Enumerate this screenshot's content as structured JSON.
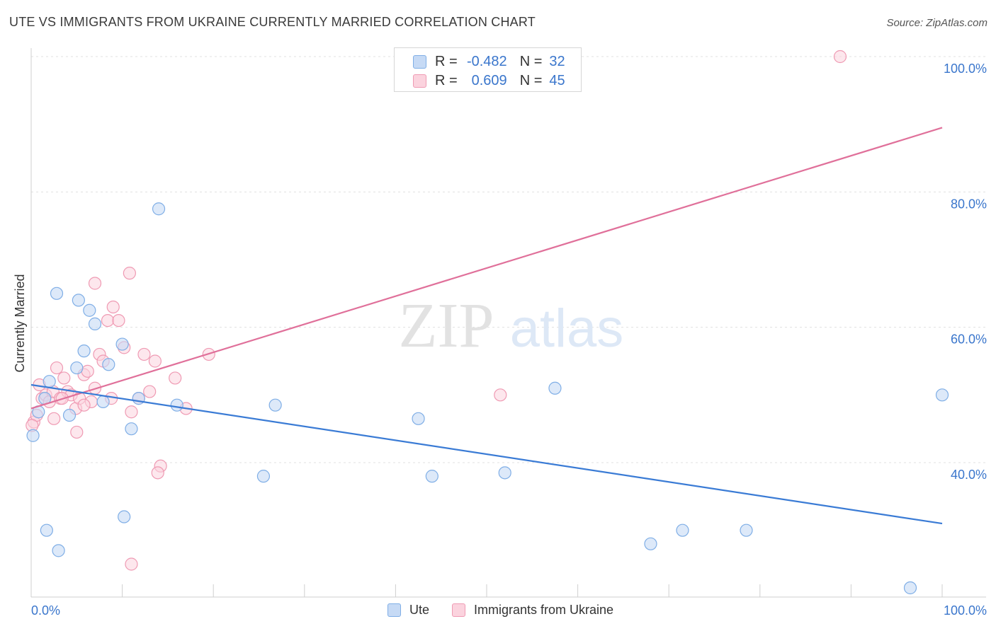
{
  "header": {
    "title": "UTE VS IMMIGRANTS FROM UKRAINE CURRENTLY MARRIED CORRELATION CHART",
    "source": "Source: ZipAtlas.com"
  },
  "watermark": {
    "zip": "ZIP",
    "atlas": "atlas"
  },
  "legend": {
    "rows": [
      {
        "r_label": "R =",
        "r_value": "-0.482",
        "n_label": "N =",
        "n_value": "32"
      },
      {
        "r_label": "R =",
        "r_value": "0.609",
        "n_label": "N =",
        "n_value": "45"
      }
    ]
  },
  "colors": {
    "ute_fill": "#c6daf5",
    "ute_stroke": "#7faee6",
    "ute_line": "#3a7bd5",
    "ukr_fill": "#fbd3de",
    "ukr_stroke": "#ef9ab3",
    "ukr_line": "#e0709a",
    "tick_text": "#3a76cc",
    "grid": "#e0e0e0"
  },
  "chart_data": {
    "type": "scatter",
    "title": "UTE VS IMMIGRANTS FROM UKRAINE CURRENTLY MARRIED CORRELATION CHART",
    "xlabel": "",
    "ylabel": "Currently Married",
    "xlim": [
      0,
      100
    ],
    "ylim": [
      20,
      102
    ],
    "x_tick_labels": [
      "0.0%",
      "100.0%"
    ],
    "y_ticks": [
      40,
      60,
      80,
      100
    ],
    "y_tick_labels": [
      "40.0%",
      "60.0%",
      "80.0%",
      "100.0%"
    ],
    "series": [
      {
        "name": "Ute",
        "r": -0.482,
        "n": 32,
        "trend": {
          "x": [
            0,
            100
          ],
          "y": [
            51.5,
            31.0
          ]
        },
        "points": [
          [
            0.2,
            44.0
          ],
          [
            0.8,
            47.5
          ],
          [
            2.8,
            65.0
          ],
          [
            4.2,
            47.0
          ],
          [
            2.0,
            52.0
          ],
          [
            5.2,
            64.0
          ],
          [
            6.4,
            62.5
          ],
          [
            7.0,
            60.5
          ],
          [
            5.8,
            56.5
          ],
          [
            5.0,
            54.0
          ],
          [
            8.5,
            54.5
          ],
          [
            7.9,
            49.0
          ],
          [
            10.0,
            57.5
          ],
          [
            11.8,
            49.5
          ],
          [
            14.0,
            77.5
          ],
          [
            11.0,
            45.0
          ],
          [
            16.0,
            48.5
          ],
          [
            3.0,
            27.0
          ],
          [
            1.7,
            30.0
          ],
          [
            10.2,
            32.0
          ],
          [
            26.8,
            48.5
          ],
          [
            25.5,
            38.0
          ],
          [
            42.5,
            46.5
          ],
          [
            44.0,
            38.0
          ],
          [
            52.0,
            38.5
          ],
          [
            57.5,
            51.0
          ],
          [
            68.0,
            28.0
          ],
          [
            71.5,
            30.0
          ],
          [
            78.5,
            30.0
          ],
          [
            96.5,
            21.5
          ],
          [
            100.0,
            50.0
          ],
          [
            1.5,
            49.5
          ]
        ]
      },
      {
        "name": "Immigrants from Ukraine",
        "r": 0.609,
        "n": 45,
        "trend": {
          "x": [
            0,
            100
          ],
          "y": [
            48.0,
            89.5
          ]
        },
        "points": [
          [
            0.3,
            46.0
          ],
          [
            0.6,
            47.0
          ],
          [
            0.9,
            51.5
          ],
          [
            1.2,
            49.5
          ],
          [
            1.6,
            50.0
          ],
          [
            2.0,
            49.0
          ],
          [
            2.4,
            50.5
          ],
          [
            2.8,
            54.0
          ],
          [
            3.2,
            49.5
          ],
          [
            3.6,
            52.5
          ],
          [
            4.0,
            50.5
          ],
          [
            4.4,
            50.0
          ],
          [
            4.9,
            48.0
          ],
          [
            5.3,
            49.5
          ],
          [
            5.8,
            53.0
          ],
          [
            6.2,
            53.5
          ],
          [
            6.6,
            49.0
          ],
          [
            7.0,
            51.0
          ],
          [
            5.0,
            44.5
          ],
          [
            5.8,
            48.5
          ],
          [
            3.4,
            49.5
          ],
          [
            7.5,
            56.0
          ],
          [
            7.9,
            55.0
          ],
          [
            8.4,
            61.0
          ],
          [
            8.8,
            49.5
          ],
          [
            9.0,
            63.0
          ],
          [
            9.6,
            61.0
          ],
          [
            10.2,
            57.0
          ],
          [
            11.0,
            47.5
          ],
          [
            11.8,
            49.5
          ],
          [
            12.4,
            56.0
          ],
          [
            13.0,
            50.5
          ],
          [
            13.6,
            55.0
          ],
          [
            14.2,
            39.5
          ],
          [
            13.9,
            38.5
          ],
          [
            15.8,
            52.5
          ],
          [
            17.0,
            48.0
          ],
          [
            19.5,
            56.0
          ],
          [
            11.0,
            25.0
          ],
          [
            51.5,
            50.0
          ],
          [
            88.8,
            100.0
          ],
          [
            10.8,
            68.0
          ],
          [
            7.0,
            66.5
          ],
          [
            2.5,
            46.5
          ],
          [
            0.1,
            45.5
          ]
        ]
      }
    ]
  },
  "bottom_legend": [
    {
      "label": "Ute"
    },
    {
      "label": "Immigrants from Ukraine"
    }
  ]
}
